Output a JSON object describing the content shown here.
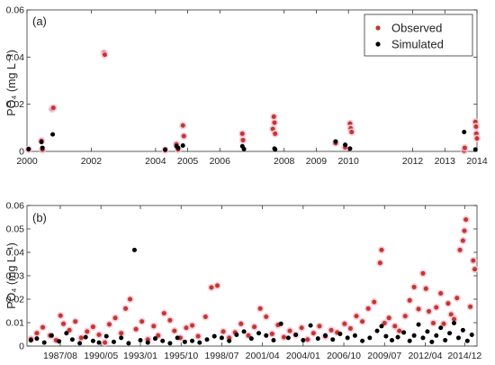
{
  "chart_data": [
    {
      "type": "scatter",
      "panel_label": "(a)",
      "ylabel": "PO₄ (mg L⁻¹)",
      "ylim": [
        0,
        0.06
      ],
      "yticks": [
        "0",
        "0.02",
        "0.04",
        "0.06"
      ],
      "xlim": [
        2000,
        2014
      ],
      "xticks": [
        "2000",
        "2002",
        "2004",
        "2005",
        "2006",
        "2008",
        "2009",
        "2010",
        "2012",
        "2013",
        "2014"
      ],
      "legend": {
        "placement": "top-right",
        "entries": [
          "Observed",
          "Simulated"
        ]
      },
      "series": [
        {
          "name": "Observed",
          "color": "#c0392b",
          "points": [
            [
              2000.05,
              0.0008
            ],
            [
              2000.45,
              0.0045
            ],
            [
              2000.48,
              0.0007
            ],
            [
              2000.78,
              0.018
            ],
            [
              2000.82,
              0.0185
            ],
            [
              2002.4,
              0.0418
            ],
            [
              2002.42,
              0.041
            ],
            [
              2004.3,
              0.0005
            ],
            [
              2004.65,
              0.003
            ],
            [
              2004.7,
              0.0008
            ],
            [
              2004.85,
              0.011
            ],
            [
              2004.88,
              0.0065
            ],
            [
              2006.7,
              0.0075
            ],
            [
              2006.72,
              0.0048
            ],
            [
              2007.65,
              0.0095
            ],
            [
              2007.68,
              0.0147
            ],
            [
              2007.7,
              0.0122
            ],
            [
              2007.72,
              0.0075
            ],
            [
              2009.6,
              0.0035
            ],
            [
              2009.9,
              0.0017
            ],
            [
              2010.05,
              0.0118
            ],
            [
              2010.07,
              0.0098
            ],
            [
              2010.1,
              0.0082
            ],
            [
              2013.6,
              0.0003
            ],
            [
              2013.62,
              0.0015
            ],
            [
              2013.95,
              0.0125
            ],
            [
              2013.97,
              0.0105
            ],
            [
              2013.98,
              0.0075
            ],
            [
              2014.0,
              0.0055
            ]
          ]
        },
        {
          "name": "Simulated",
          "color": "#000000",
          "points": [
            [
              2000.05,
              0.001
            ],
            [
              2000.45,
              0.004
            ],
            [
              2000.48,
              0.0015
            ],
            [
              2000.8,
              0.0072
            ],
            [
              2004.3,
              0.0008
            ],
            [
              2004.65,
              0.0022
            ],
            [
              2004.7,
              0.0015
            ],
            [
              2004.85,
              0.0025
            ],
            [
              2006.7,
              0.0022
            ],
            [
              2006.75,
              0.001
            ],
            [
              2007.7,
              0.0012
            ],
            [
              2007.72,
              0.0008
            ],
            [
              2009.6,
              0.0042
            ],
            [
              2009.9,
              0.0028
            ],
            [
              2010.05,
              0.0012
            ],
            [
              2013.6,
              0.0082
            ],
            [
              2013.95,
              0.0008
            ]
          ]
        }
      ]
    },
    {
      "type": "scatter",
      "panel_label": "(b)",
      "ylabel": "PO₄ (mg L⁻¹)",
      "ylim": [
        0,
        0.06
      ],
      "yticks": [
        "0",
        "0.01",
        "0.02",
        "0.03",
        "0.04",
        "0.05",
        "0.06"
      ],
      "xlim": [
        "1985/05",
        "2015/10"
      ],
      "xticks": [
        "1987/08",
        "1990/05",
        "1993/01",
        "1995/10",
        "1998/07",
        "2001/04",
        "2004/01",
        "2006/10",
        "2009/07",
        "2012/04",
        "2014/12"
      ],
      "series": [
        {
          "name": "Observed",
          "color": "#c0392b",
          "points": [
            [
              1985.6,
              0.003
            ],
            [
              1986.0,
              0.0055
            ],
            [
              1986.4,
              0.008
            ],
            [
              1986.9,
              0.0045
            ],
            [
              1987.3,
              0.0025
            ],
            [
              1987.6,
              0.013
            ],
            [
              1987.8,
              0.0095
            ],
            [
              1988.2,
              0.0068
            ],
            [
              1988.6,
              0.0105
            ],
            [
              1989.0,
              0.0035
            ],
            [
              1989.4,
              0.0062
            ],
            [
              1989.8,
              0.0082
            ],
            [
              1990.2,
              0.0048
            ],
            [
              1990.6,
              0.0015
            ],
            [
              1990.9,
              0.0093
            ],
            [
              1991.3,
              0.012
            ],
            [
              1991.7,
              0.0055
            ],
            [
              1992.0,
              0.016
            ],
            [
              1992.3,
              0.02
            ],
            [
              1992.7,
              0.0072
            ],
            [
              1993.1,
              0.0105
            ],
            [
              1993.5,
              0.0028
            ],
            [
              1993.9,
              0.0085
            ],
            [
              1994.2,
              0.0045
            ],
            [
              1994.6,
              0.014
            ],
            [
              1995.0,
              0.011
            ],
            [
              1995.3,
              0.0065
            ],
            [
              1995.7,
              0.0035
            ],
            [
              1996.1,
              0.0078
            ],
            [
              1996.5,
              0.0088
            ],
            [
              1996.9,
              0.0042
            ],
            [
              1997.4,
              0.0125
            ],
            [
              1997.8,
              0.025
            ],
            [
              1998.2,
              0.0258
            ],
            [
              1998.6,
              0.0062
            ],
            [
              1999.0,
              0.0035
            ],
            [
              1999.4,
              0.0058
            ],
            [
              1999.8,
              0.0095
            ],
            [
              2000.3,
              0.0045
            ],
            [
              2000.7,
              0.0082
            ],
            [
              2001.1,
              0.016
            ],
            [
              2001.5,
              0.0125
            ],
            [
              2001.9,
              0.0052
            ],
            [
              2002.3,
              0.009
            ],
            [
              2002.7,
              0.0038
            ],
            [
              2003.1,
              0.0065
            ],
            [
              2003.5,
              0.0048
            ],
            [
              2003.9,
              0.0078
            ],
            [
              2004.3,
              0.0028
            ],
            [
              2004.7,
              0.0055
            ],
            [
              2005.1,
              0.0085
            ],
            [
              2005.5,
              0.0042
            ],
            [
              2005.9,
              0.0068
            ],
            [
              2006.3,
              0.0058
            ],
            [
              2006.8,
              0.0095
            ],
            [
              2007.2,
              0.0075
            ],
            [
              2007.6,
              0.0128
            ],
            [
              2008.0,
              0.0105
            ],
            [
              2008.4,
              0.016
            ],
            [
              2008.8,
              0.0188
            ],
            [
              2009.2,
              0.0355
            ],
            [
              2009.3,
              0.041
            ],
            [
              2009.5,
              0.0098
            ],
            [
              2009.8,
              0.012
            ],
            [
              2010.2,
              0.0085
            ],
            [
              2010.5,
              0.0065
            ],
            [
              2010.9,
              0.0128
            ],
            [
              2011.2,
              0.0195
            ],
            [
              2011.5,
              0.0252
            ],
            [
              2011.8,
              0.0158
            ],
            [
              2012.1,
              0.031
            ],
            [
              2012.3,
              0.0245
            ],
            [
              2012.5,
              0.0148
            ],
            [
              2012.8,
              0.0098
            ],
            [
              2013.0,
              0.0165
            ],
            [
              2013.3,
              0.0225
            ],
            [
              2013.5,
              0.0095
            ],
            [
              2013.8,
              0.0182
            ],
            [
              2014.0,
              0.0135
            ],
            [
              2014.2,
              0.0115
            ],
            [
              2014.4,
              0.0205
            ],
            [
              2014.6,
              0.041
            ],
            [
              2014.8,
              0.045
            ],
            [
              2014.9,
              0.0492
            ],
            [
              2015.0,
              0.054
            ],
            [
              2015.3,
              0.0168
            ],
            [
              2015.5,
              0.0365
            ],
            [
              2015.6,
              0.0328
            ]
          ]
        },
        {
          "name": "Simulated",
          "color": "#000000",
          "points": [
            [
              1985.6,
              0.0025
            ],
            [
              1986.0,
              0.0032
            ],
            [
              1986.5,
              0.0015
            ],
            [
              1987.0,
              0.0045
            ],
            [
              1987.5,
              0.002
            ],
            [
              1988.0,
              0.0055
            ],
            [
              1988.4,
              0.0028
            ],
            [
              1988.9,
              0.0012
            ],
            [
              1989.3,
              0.0038
            ],
            [
              1989.8,
              0.0022
            ],
            [
              1990.2,
              0.0015
            ],
            [
              1990.7,
              0.0042
            ],
            [
              1991.2,
              0.0018
            ],
            [
              1991.7,
              0.0035
            ],
            [
              1992.2,
              0.0012
            ],
            [
              1992.6,
              0.041
            ],
            [
              1993.0,
              0.0025
            ],
            [
              1993.5,
              0.0015
            ],
            [
              1994.0,
              0.0032
            ],
            [
              1994.5,
              0.0022
            ],
            [
              1995.0,
              0.0012
            ],
            [
              1995.5,
              0.0035
            ],
            [
              1996.0,
              0.0018
            ],
            [
              1996.5,
              0.0022
            ],
            [
              1997.0,
              0.0015
            ],
            [
              1997.5,
              0.0028
            ],
            [
              1998.0,
              0.0042
            ],
            [
              1998.5,
              0.0035
            ],
            [
              1999.0,
              0.0022
            ],
            [
              1999.5,
              0.0048
            ],
            [
              2000.0,
              0.0062
            ],
            [
              2000.5,
              0.0032
            ],
            [
              2001.0,
              0.0055
            ],
            [
              2001.5,
              0.0045
            ],
            [
              2002.0,
              0.0025
            ],
            [
              2002.5,
              0.0095
            ],
            [
              2003.0,
              0.0035
            ],
            [
              2003.5,
              0.0048
            ],
            [
              2004.0,
              0.0025
            ],
            [
              2004.5,
              0.0088
            ],
            [
              2005.0,
              0.0032
            ],
            [
              2005.5,
              0.0045
            ],
            [
              2006.0,
              0.0028
            ],
            [
              2006.5,
              0.0052
            ],
            [
              2007.0,
              0.0035
            ],
            [
              2007.5,
              0.0045
            ],
            [
              2008.0,
              0.0022
            ],
            [
              2008.5,
              0.0035
            ],
            [
              2009.0,
              0.0065
            ],
            [
              2009.3,
              0.0085
            ],
            [
              2009.6,
              0.0042
            ],
            [
              2010.0,
              0.0025
            ],
            [
              2010.4,
              0.0038
            ],
            [
              2010.8,
              0.0058
            ],
            [
              2011.2,
              0.0022
            ],
            [
              2011.5,
              0.0045
            ],
            [
              2011.8,
              0.0092
            ],
            [
              2012.1,
              0.0035
            ],
            [
              2012.4,
              0.0062
            ],
            [
              2012.7,
              0.0018
            ],
            [
              2013.0,
              0.0045
            ],
            [
              2013.3,
              0.0078
            ],
            [
              2013.6,
              0.0025
            ],
            [
              2013.9,
              0.0055
            ],
            [
              2014.2,
              0.0098
            ],
            [
              2014.5,
              0.0035
            ],
            [
              2014.8,
              0.0068
            ],
            [
              2015.1,
              0.0022
            ],
            [
              2015.4,
              0.0048
            ]
          ]
        }
      ]
    }
  ]
}
